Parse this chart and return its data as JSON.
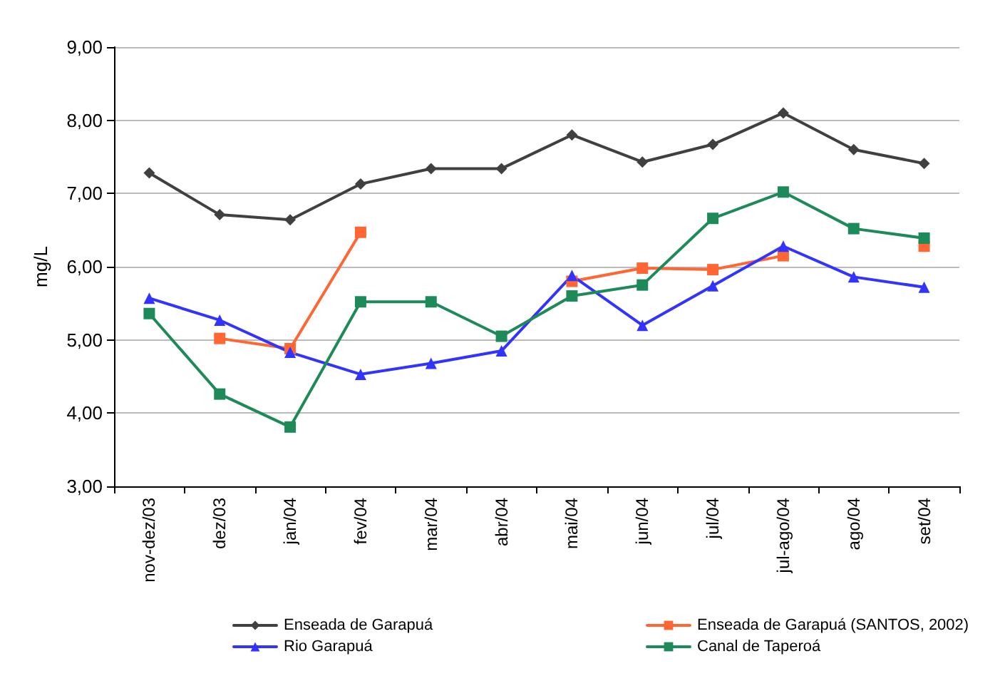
{
  "chart_data": {
    "type": "line",
    "ylabel": "mg/L",
    "categories": [
      "nov-dez/03",
      "dez/03",
      "jan/04",
      "fev/04",
      "mar/04",
      "abr/04",
      "mai/04",
      "jun/04",
      "jul/04",
      "jul-ago/04",
      "ago/04",
      "set/04"
    ],
    "series": [
      {
        "name": "Enseada de Garapuá",
        "color": "#404040",
        "marker": "diamond",
        "values": [
          7.28,
          6.71,
          6.64,
          7.13,
          7.34,
          7.34,
          7.8,
          7.43,
          7.67,
          8.1,
          7.6,
          7.41
        ]
      },
      {
        "name": "Enseada de Garapuá (SANTOS, 2002)",
        "color": "#ff6633",
        "marker": "square",
        "values": [
          null,
          5.02,
          4.88,
          6.47,
          null,
          null,
          5.8,
          5.98,
          5.96,
          6.15,
          null,
          6.28
        ]
      },
      {
        "name": "Rio Garapuá",
        "color": "#3333ff",
        "marker": "triangle",
        "values": [
          5.57,
          5.27,
          4.83,
          4.53,
          4.68,
          4.85,
          5.88,
          5.2,
          5.74,
          6.28,
          5.86,
          5.72
        ]
      },
      {
        "name": "Canal de Taperoá",
        "color": "#1e8a5a",
        "marker": "square",
        "values": [
          5.36,
          4.26,
          3.81,
          5.52,
          5.52,
          5.05,
          5.6,
          5.75,
          6.66,
          7.02,
          6.52,
          6.39
        ]
      }
    ],
    "ylim": [
      3,
      9
    ],
    "yticks": [
      {
        "value": 3,
        "label": "3,00"
      },
      {
        "value": 4,
        "label": "4,00"
      },
      {
        "value": 5,
        "label": "5,00"
      },
      {
        "value": 6,
        "label": "6,00"
      },
      {
        "value": 7,
        "label": "7,00"
      },
      {
        "value": 8,
        "label": "8,00"
      },
      {
        "value": 9,
        "label": "9,00"
      }
    ],
    "grid": "y",
    "legend": "bottom",
    "line_style": "solid"
  }
}
